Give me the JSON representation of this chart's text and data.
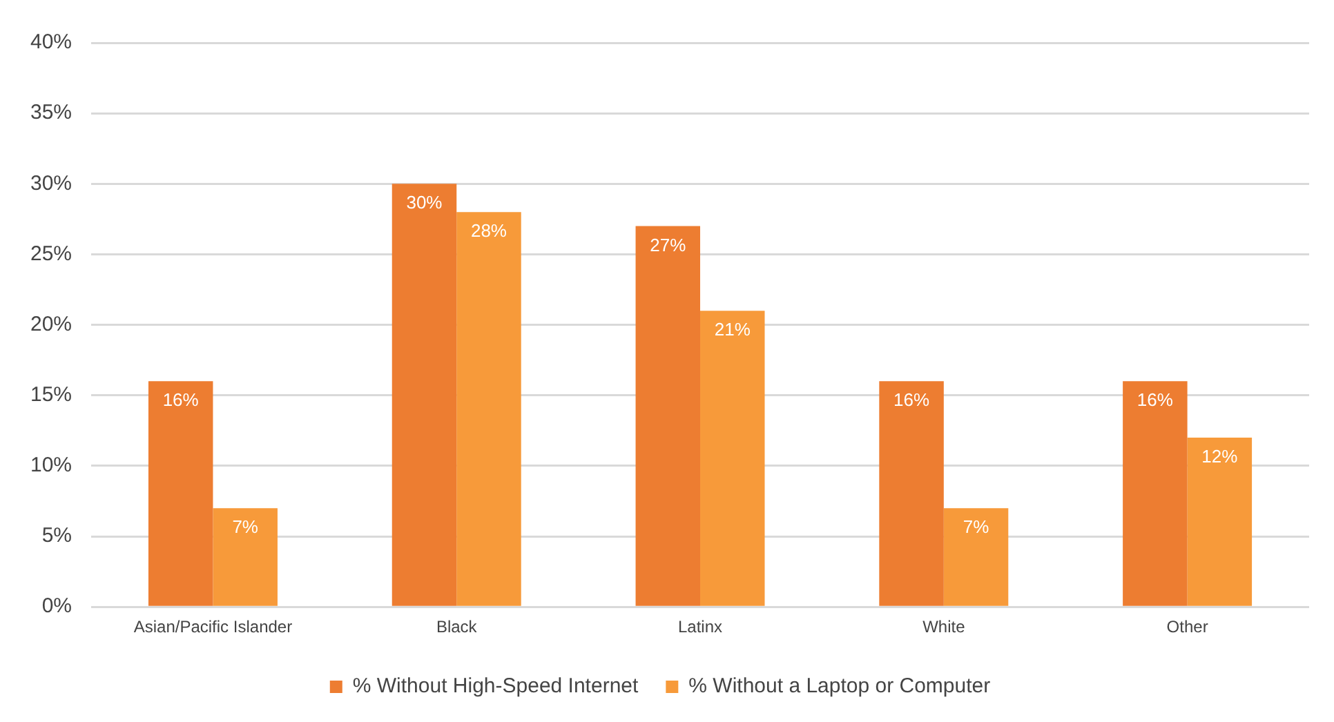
{
  "chart_data": {
    "type": "bar",
    "categories": [
      "Asian/Pacific Islander",
      "Black",
      "Latinx",
      "White",
      "Other"
    ],
    "series": [
      {
        "name": "% Without High-Speed Internet",
        "color": "#ed7d31",
        "values": [
          16,
          30,
          27,
          16,
          16
        ],
        "value_labels": [
          "16%",
          "30%",
          "27%",
          "16%",
          "16%"
        ]
      },
      {
        "name": "% Without a Laptop or Computer",
        "color": "#f79a3a",
        "values": [
          7,
          28,
          21,
          7,
          12
        ],
        "value_labels": [
          "7%",
          "28%",
          "21%",
          "7%",
          "12%"
        ]
      }
    ],
    "ylim": [
      0,
      40
    ],
    "yticks": [
      {
        "value": 0,
        "label": "0%"
      },
      {
        "value": 5,
        "label": "5%"
      },
      {
        "value": 10,
        "label": "10%"
      },
      {
        "value": 15,
        "label": "15%"
      },
      {
        "value": 20,
        "label": "20%"
      },
      {
        "value": 25,
        "label": "25%"
      },
      {
        "value": 30,
        "label": "30%"
      },
      {
        "value": 35,
        "label": "35%"
      },
      {
        "value": 40,
        "label": "40%"
      }
    ],
    "grid": "y",
    "legend": "bottom"
  }
}
